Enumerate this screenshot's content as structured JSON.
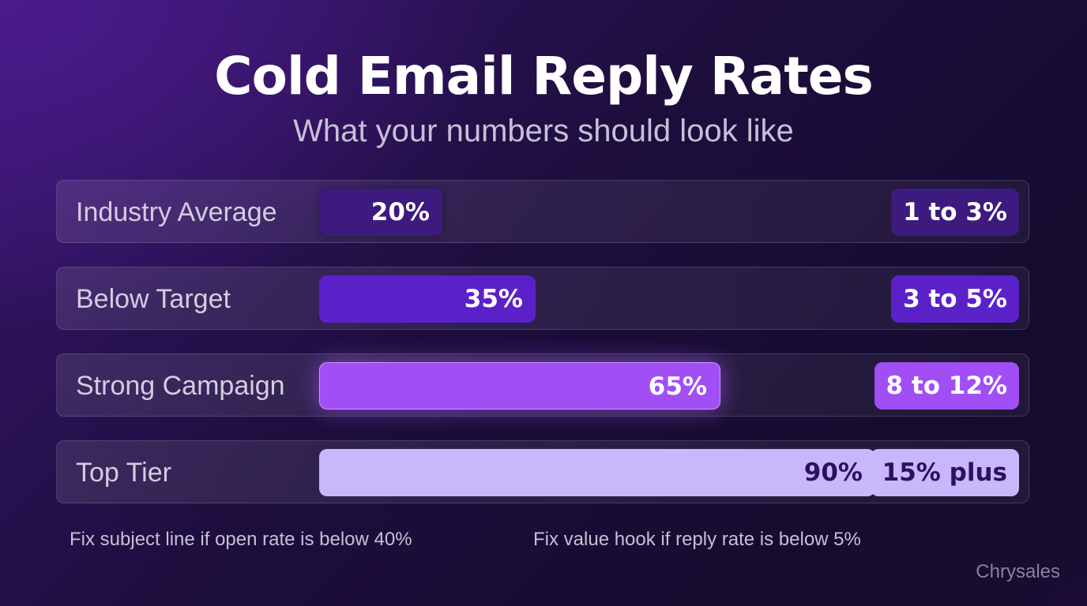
{
  "title": "Cold Email Reply Rates",
  "subtitle": "What your numbers should look like",
  "chart_data": {
    "type": "bar",
    "orientation": "horizontal",
    "categories": [
      "Industry Average",
      "Below Target",
      "Strong Campaign",
      "Top Tier"
    ],
    "values": [
      20,
      35,
      65,
      90
    ],
    "value_labels": [
      "20%",
      "35%",
      "65%",
      "90%"
    ],
    "badges": [
      "1 to 3%",
      "3 to 5%",
      "8 to 12%",
      "15% plus"
    ],
    "unit": "%",
    "xlim": [
      0,
      100
    ],
    "bar_colors": [
      "#3d1a7e",
      "#5b21c9",
      "#a14ff5",
      "#c9b7fb"
    ],
    "badge_colors": [
      "#3d1a7e",
      "#5b21c9",
      "#a14ff5",
      "#c9b7fb"
    ],
    "text_colors": [
      "#ffffff",
      "#ffffff",
      "#ffffff",
      "#2a1260"
    ],
    "grid": false,
    "legend": "none"
  },
  "notes": [
    "Fix subject line if open rate is below 40%",
    "Fix value hook if reply rate is below 5%"
  ],
  "brand": "Chrysales"
}
